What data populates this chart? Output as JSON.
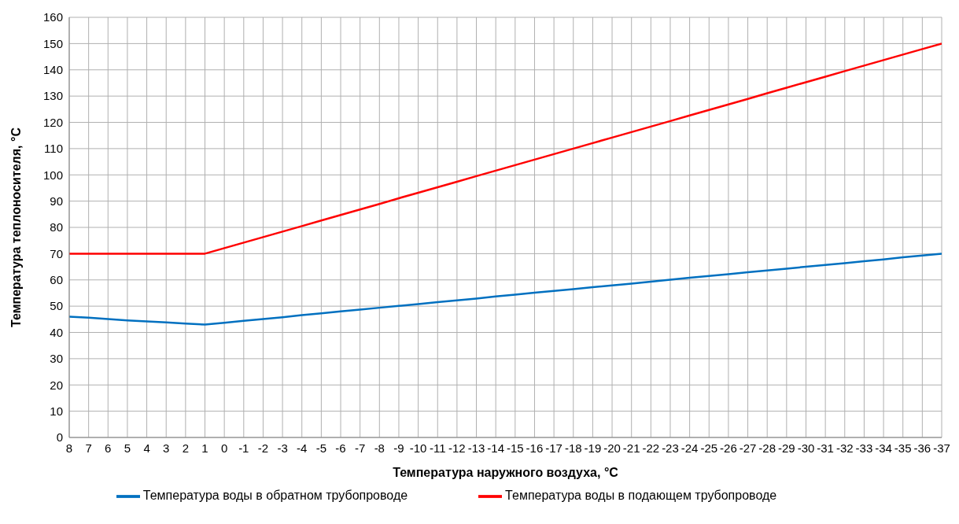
{
  "chart_data": {
    "type": "line",
    "xlabel": "Температура наружного воздуха, °C",
    "ylabel": "Температура теплоносителя, °C",
    "categories": [
      "8",
      "7",
      "6",
      "5",
      "4",
      "3",
      "2",
      "1",
      "0",
      "-1",
      "-2",
      "-3",
      "-4",
      "-5",
      "-6",
      "-7",
      "-8",
      "-9",
      "-10",
      "-11",
      "-12",
      "-13",
      "-14",
      "-15",
      "-16",
      "-17",
      "-18",
      "-19",
      "-20",
      "-21",
      "-22",
      "-23",
      "-24",
      "-25",
      "-26",
      "-27",
      "-28",
      "-29",
      "-30",
      "-31",
      "-32",
      "-33",
      "-34",
      "-35",
      "-36",
      "-37"
    ],
    "series": [
      {
        "name": "Температура воды в подающем трубопроводе",
        "color": "#ff0000",
        "values": [
          70,
          70,
          70,
          70,
          70,
          70,
          70,
          70,
          72.1,
          74.2,
          76.3,
          78.4,
          80.5,
          82.6,
          84.7,
          86.8,
          88.9,
          91.1,
          93.2,
          95.3,
          97.4,
          99.5,
          101.6,
          103.7,
          105.8,
          107.9,
          110.0,
          112.1,
          114.2,
          116.3,
          118.4,
          120.5,
          122.6,
          124.7,
          126.8,
          128.9,
          131.1,
          133.2,
          135.3,
          137.4,
          139.5,
          141.6,
          143.7,
          145.8,
          147.9,
          150
        ]
      },
      {
        "name": "Температура воды в обратном трубопроводе",
        "color": "#0070c0",
        "values": [
          46,
          45.6,
          45.1,
          44.6,
          44.2,
          43.8,
          43.4,
          43,
          43.7,
          44.4,
          45.1,
          45.8,
          46.6,
          47.3,
          48.0,
          48.7,
          49.4,
          50.1,
          50.8,
          51.5,
          52.2,
          52.9,
          53.7,
          54.4,
          55.1,
          55.8,
          56.5,
          57.2,
          57.9,
          58.6,
          59.3,
          60.1,
          60.8,
          61.5,
          62.2,
          62.9,
          63.6,
          64.3,
          65.0,
          65.7,
          66.4,
          67.1,
          67.8,
          68.6,
          69.3,
          70
        ]
      }
    ],
    "ylim": [
      0,
      160
    ],
    "yticks": [
      0,
      10,
      20,
      30,
      40,
      50,
      60,
      70,
      80,
      90,
      100,
      110,
      120,
      130,
      140,
      150,
      160
    ],
    "grid": true,
    "legend": "bottom",
    "marker": "none",
    "line_style": "solid"
  }
}
